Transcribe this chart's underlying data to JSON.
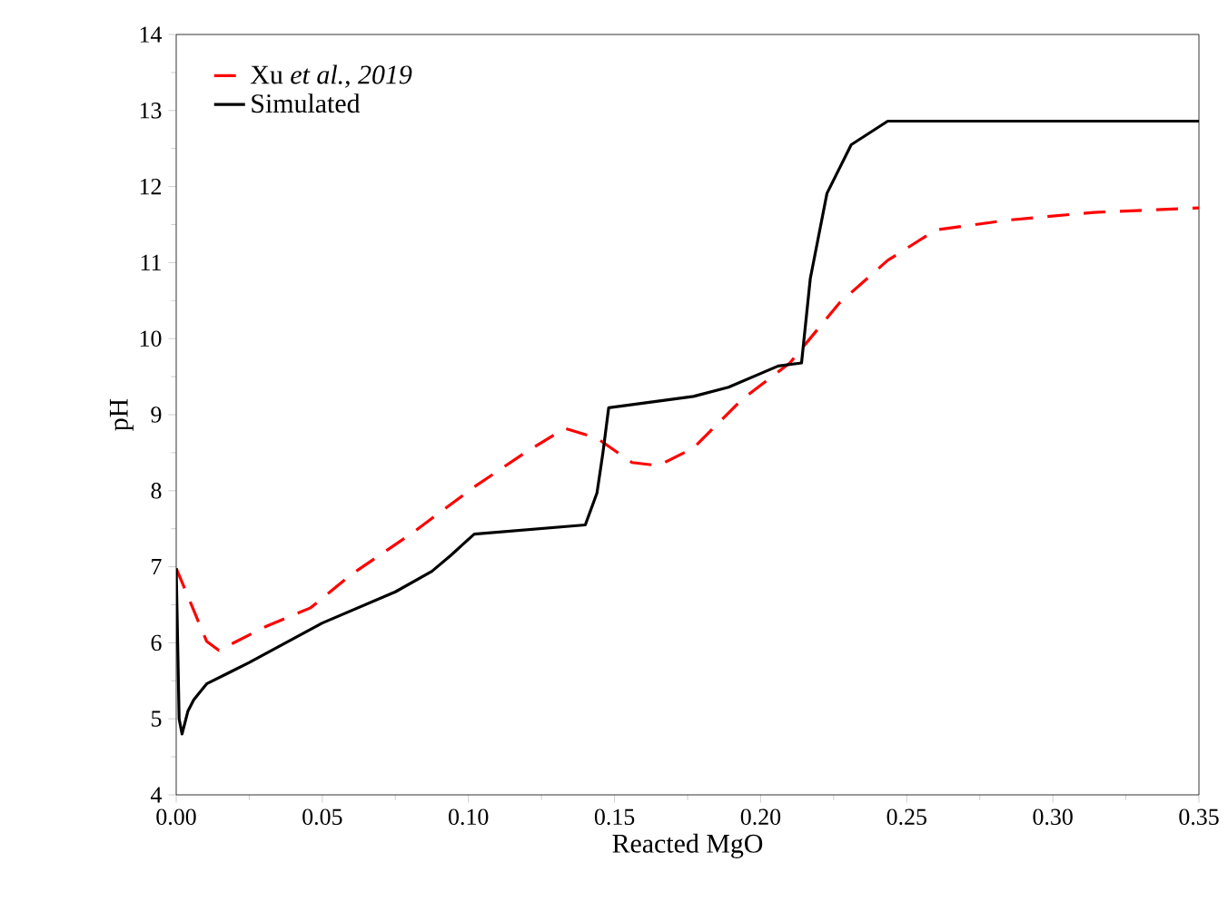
{
  "chart_data": {
    "type": "line",
    "xlabel": "Reacted MgO",
    "ylabel": "pH",
    "xlim": [
      0,
      0.35
    ],
    "ylim": [
      4,
      14
    ],
    "xticks": [
      {
        "value": 0,
        "label": "0.00"
      },
      {
        "value": 0.05,
        "label": "0.05"
      },
      {
        "value": 0.1,
        "label": "0.10"
      },
      {
        "value": 0.15,
        "label": "0.15"
      },
      {
        "value": 0.2,
        "label": "0.20"
      },
      {
        "value": 0.25,
        "label": "0.25"
      },
      {
        "value": 0.3,
        "label": "0.30"
      },
      {
        "value": 0.35,
        "label": "0.35"
      }
    ],
    "yticks": [
      4,
      5,
      6,
      7,
      8,
      9,
      10,
      11,
      12,
      13,
      14
    ],
    "legend": "top left",
    "grid": false,
    "series": [
      {
        "name": "Xu *et al., 2019*",
        "color": "#ff0000",
        "line_style": "dashed",
        "x": [
          0,
          0.0104,
          0.0146,
          0.031,
          0.046,
          0.06,
          0.081,
          0.102,
          0.119,
          0.133,
          0.144,
          0.156,
          0.165,
          0.177,
          0.1936,
          0.21,
          0.227,
          0.2435,
          0.26,
          0.285,
          0.314,
          0.35
        ],
        "values": [
          6.98,
          6.02,
          5.9,
          6.22,
          6.46,
          6.9,
          7.45,
          8.05,
          8.49,
          8.82,
          8.69,
          8.37,
          8.33,
          8.56,
          9.2,
          9.68,
          10.47,
          11.03,
          11.43,
          11.56,
          11.66,
          11.72
        ]
      },
      {
        "name": "Simulated",
        "color": "#000000",
        "line_style": "solid",
        "x": [
          0,
          0.001,
          0.002,
          0.004,
          0.006,
          0.0104,
          0.025,
          0.05,
          0.075,
          0.0875,
          0.094,
          0.102,
          0.14,
          0.144,
          0.146,
          0.148,
          0.177,
          0.189,
          0.206,
          0.214,
          0.217,
          0.2227,
          0.231,
          0.2435,
          0.35
        ],
        "values": [
          6.98,
          5.0,
          4.8,
          5.1,
          5.25,
          5.46,
          5.74,
          6.26,
          6.67,
          6.94,
          7.15,
          7.43,
          7.55,
          7.97,
          8.49,
          9.09,
          9.24,
          9.36,
          9.64,
          9.68,
          10.79,
          11.91,
          12.55,
          12.86,
          12.86
        ]
      }
    ]
  }
}
